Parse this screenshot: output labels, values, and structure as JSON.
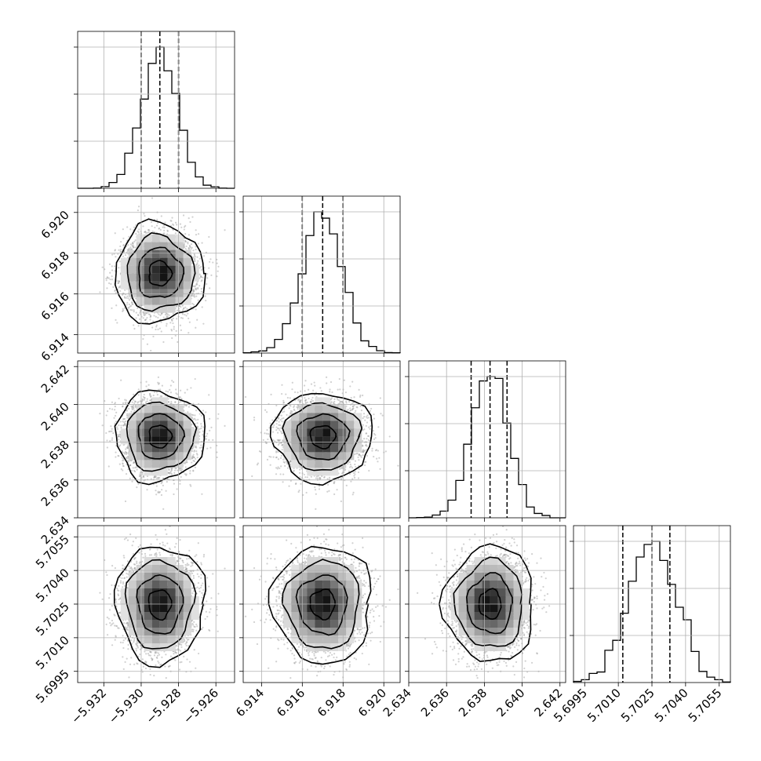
{
  "chart_data": {
    "type": "corner",
    "title": "",
    "grid": true,
    "parameters": [
      {
        "median": -5.929,
        "quantile_16": -5.93,
        "quantile_84": -5.928,
        "sigma": 0.00096,
        "range": [
          -5.9334,
          -5.925
        ],
        "ticks": [
          -5.932,
          -5.93,
          -5.928,
          -5.926
        ],
        "tick_labels": [
          "−5.932",
          "−5.930",
          "−5.928",
          "−5.926"
        ]
      },
      {
        "median": 6.917,
        "quantile_16": 6.916,
        "quantile_84": 6.918,
        "sigma": 0.00098,
        "range": [
          6.9131,
          6.9208
        ],
        "ticks": [
          6.914,
          6.916,
          6.918,
          6.92
        ],
        "tick_labels": [
          "6.914",
          "6.916",
          "6.918",
          "6.920"
        ]
      },
      {
        "median": 2.6383,
        "quantile_16": 2.6373,
        "quantile_84": 2.6392,
        "sigma": 0.00095,
        "range": [
          2.634,
          2.6423
        ],
        "ticks": [
          2.634,
          2.636,
          2.638,
          2.64,
          2.642
        ],
        "tick_labels": [
          "2.634",
          "2.636",
          "2.638",
          "2.640",
          "2.642"
        ]
      },
      {
        "median": 5.7025,
        "quantile_16": 5.7012,
        "quantile_84": 5.7033,
        "sigma": 0.00105,
        "range": [
          5.699,
          5.706
        ],
        "ticks": [
          5.6995,
          5.701,
          5.7025,
          5.704,
          5.7055
        ],
        "tick_labels": [
          "5.6995",
          "5.7010",
          "5.7025",
          "5.7040",
          "5.7055"
        ]
      }
    ],
    "histogram_color": "#000000",
    "scatter_color": "#9a9a9a",
    "density_color": "#000000",
    "contour_color": "#000000",
    "quantile_line_style": "dashed"
  }
}
